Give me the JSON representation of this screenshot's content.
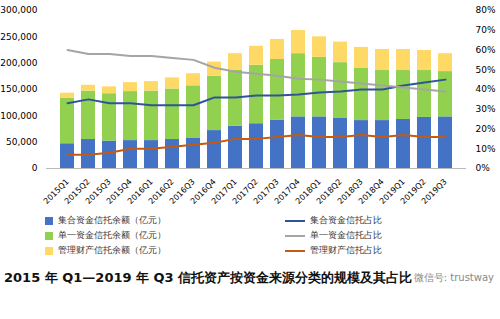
{
  "chart_data": {
    "type": "bar",
    "title": "2015 年 Q1—2019 年 Q3 信托资产按资金来源分类的规模及其占比",
    "annotations": [
      "微信号: trustway"
    ],
    "categories": [
      "2015Q1",
      "2015Q2",
      "2015Q3",
      "2015Q4",
      "2016Q1",
      "2016Q2",
      "2016Q3",
      "2016Q4",
      "2017Q1",
      "2017Q2",
      "2017Q3",
      "2017Q4",
      "2018Q1",
      "2018Q2",
      "2018Q3",
      "2018Q4",
      "2019Q1",
      "2019Q2",
      "2019Q3"
    ],
    "stacked": true,
    "legend": "bottom",
    "grid": false,
    "ylim": [
      0,
      300000
    ],
    "yticks": [
      0,
      {
        "value": 50000,
        "label": "50,000"
      },
      {
        "value": 100000,
        "label": "100,000"
      },
      {
        "value": 150000,
        "label": "150,000"
      },
      {
        "value": 200000,
        "label": "200,000"
      },
      {
        "value": 250000,
        "label": "250,000"
      },
      {
        "value": 300000,
        "label": "300,000"
      }
    ],
    "y2lim": [
      0,
      80
    ],
    "y2ticks": [
      {
        "value": 0,
        "label": "0%"
      },
      {
        "value": 10,
        "label": "10%"
      },
      {
        "value": 20,
        "label": "20%"
      },
      {
        "value": 30,
        "label": "30%"
      },
      {
        "value": 40,
        "label": "40%"
      },
      {
        "value": 50,
        "label": "50%"
      },
      {
        "value": 60,
        "label": "60%"
      },
      {
        "value": 70,
        "label": "70%"
      },
      {
        "value": 80,
        "label": "80%"
      }
    ],
    "series": [
      {
        "name": "集合资金信托余额（亿元）",
        "type": "bar",
        "color": "#4472c4",
        "values": [
          47000,
          55000,
          52000,
          53000,
          53000,
          55000,
          58000,
          72000,
          80000,
          85000,
          92000,
          98000,
          98000,
          95000,
          91000,
          91000,
          93000,
          97000,
          98000
        ]
      },
      {
        "name": "单一资金信托余额（亿元）",
        "type": "bar",
        "color": "#92d050",
        "values": [
          86000,
          92000,
          90000,
          93000,
          94000,
          96000,
          99000,
          103000,
          107000,
          111000,
          115000,
          120000,
          113000,
          106000,
          99000,
          95000,
          93000,
          89000,
          86000
        ]
      },
      {
        "name": "管理财产信托余额（亿元）",
        "type": "bar",
        "color": "#ffd966",
        "values": [
          10000,
          11000,
          13000,
          17000,
          18000,
          21000,
          23000,
          27000,
          31000,
          36000,
          38000,
          44000,
          39000,
          39000,
          40000,
          40000,
          40000,
          38000,
          34000
        ]
      },
      {
        "name": "集合资金信托占比",
        "type": "line",
        "axis": "y2",
        "color": "#2f5597",
        "values": [
          33,
          35,
          33,
          33,
          32,
          32,
          32,
          36,
          36,
          37,
          37,
          37.5,
          38.5,
          39,
          40,
          40,
          42,
          43.5,
          45
        ]
      },
      {
        "name": "单一资金信托占比",
        "type": "line",
        "axis": "y2",
        "color": "#a5a5a5",
        "values": [
          60,
          58,
          58,
          57,
          57,
          56,
          55,
          51,
          49,
          48,
          47,
          45.5,
          45,
          44,
          43,
          42,
          41,
          40,
          39
        ]
      },
      {
        "name": "管理财产信托占比",
        "type": "line",
        "axis": "y2",
        "color": "#c55a11",
        "values": [
          7,
          7,
          8,
          10,
          10,
          11,
          12,
          13,
          15,
          15,
          16,
          17,
          16,
          16,
          17,
          16,
          17,
          16,
          16
        ]
      }
    ]
  }
}
